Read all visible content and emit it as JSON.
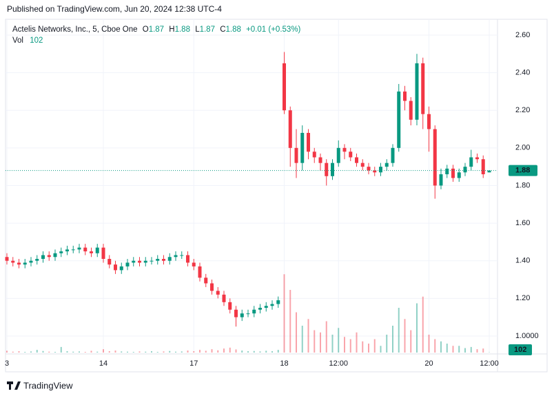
{
  "published": "Published on TradingView.com, Jun 20, 2024 12:38 UTC-4",
  "brand": "TradingView",
  "chart_data": {
    "type": "candlestick",
    "title": "Actelis Networks, Inc., 5, Cboe One",
    "ohlc_labels": [
      "O",
      "H",
      "L",
      "C"
    ],
    "change": "+0.01 (+0.53%)",
    "categories": [
      "3",
      null,
      null,
      null,
      null,
      null,
      null,
      null,
      null,
      null,
      null,
      null,
      null,
      null,
      null,
      null,
      "14",
      null,
      null,
      null,
      null,
      null,
      null,
      null,
      null,
      null,
      null,
      null,
      null,
      null,
      null,
      "17",
      null,
      null,
      null,
      null,
      null,
      null,
      null,
      null,
      null,
      null,
      null,
      null,
      null,
      null,
      "18",
      null,
      null,
      null,
      null,
      null,
      null,
      null,
      null,
      "12:00",
      null,
      null,
      null,
      null,
      null,
      null,
      null,
      null,
      null,
      null,
      null,
      null,
      null,
      null,
      "20",
      null,
      null,
      null,
      null,
      null,
      null,
      null,
      null,
      null,
      "12:00"
    ],
    "open": [
      1.42,
      1.4,
      1.39,
      1.38,
      1.39,
      1.4,
      1.41,
      1.43,
      1.42,
      1.44,
      1.45,
      1.46,
      1.46,
      1.47,
      1.45,
      1.44,
      1.47,
      1.41,
      1.38,
      1.35,
      1.37,
      1.39,
      1.4,
      1.39,
      1.4,
      1.4,
      1.41,
      1.4,
      1.42,
      1.43,
      1.43,
      1.39,
      1.37,
      1.31,
      1.28,
      1.24,
      1.22,
      1.18,
      1.14,
      1.1,
      1.12,
      1.12,
      1.14,
      1.15,
      1.16,
      1.17,
      2.45,
      2.2,
      2.0,
      1.92,
      2.08,
      1.98,
      1.95,
      1.92,
      1.85,
      1.92,
      2.0,
      1.98,
      1.95,
      1.92,
      1.9,
      1.88,
      1.87,
      1.9,
      1.92,
      2.0,
      2.3,
      2.25,
      2.15,
      2.45,
      2.18,
      2.1,
      1.8,
      1.86,
      1.89,
      1.84,
      1.87,
      1.9,
      1.95,
      1.94,
      1.87
    ],
    "high": [
      1.44,
      1.42,
      1.41,
      1.41,
      1.42,
      1.43,
      1.45,
      1.45,
      1.46,
      1.47,
      1.48,
      1.48,
      1.49,
      1.49,
      1.47,
      1.49,
      1.49,
      1.43,
      1.4,
      1.39,
      1.41,
      1.42,
      1.42,
      1.42,
      1.42,
      1.43,
      1.43,
      1.44,
      1.45,
      1.45,
      1.45,
      1.41,
      1.39,
      1.33,
      1.3,
      1.26,
      1.24,
      1.2,
      1.16,
      1.14,
      1.14,
      1.16,
      1.17,
      1.18,
      1.19,
      1.21,
      2.51,
      2.22,
      2.1,
      2.12,
      2.1,
      2.0,
      1.97,
      1.94,
      1.94,
      2.04,
      2.02,
      2.0,
      1.97,
      1.94,
      1.92,
      1.9,
      1.92,
      1.94,
      2.02,
      2.34,
      2.33,
      2.27,
      2.5,
      2.48,
      2.22,
      2.12,
      1.89,
      1.91,
      1.91,
      1.89,
      1.92,
      1.99,
      1.97,
      1.96,
      1.88
    ],
    "low": [
      1.38,
      1.37,
      1.36,
      1.36,
      1.37,
      1.38,
      1.39,
      1.4,
      1.4,
      1.42,
      1.43,
      1.44,
      1.44,
      1.43,
      1.42,
      1.42,
      1.39,
      1.36,
      1.33,
      1.33,
      1.35,
      1.37,
      1.37,
      1.37,
      1.38,
      1.38,
      1.38,
      1.38,
      1.4,
      1.41,
      1.37,
      1.35,
      1.29,
      1.26,
      1.22,
      1.2,
      1.16,
      1.12,
      1.05,
      1.08,
      1.1,
      1.1,
      1.12,
      1.13,
      1.14,
      1.15,
      2.18,
      1.9,
      1.84,
      1.88,
      1.94,
      1.92,
      1.88,
      1.8,
      1.83,
      1.9,
      1.94,
      1.93,
      1.9,
      1.88,
      1.86,
      1.85,
      1.85,
      1.88,
      1.9,
      1.98,
      2.2,
      2.12,
      2.12,
      2.1,
      1.98,
      1.73,
      1.78,
      1.84,
      1.82,
      1.82,
      1.85,
      1.88,
      1.92,
      1.84,
      1.87
    ],
    "close": [
      1.4,
      1.39,
      1.38,
      1.39,
      1.4,
      1.41,
      1.43,
      1.42,
      1.44,
      1.45,
      1.46,
      1.46,
      1.47,
      1.45,
      1.44,
      1.47,
      1.41,
      1.38,
      1.35,
      1.37,
      1.39,
      1.4,
      1.39,
      1.4,
      1.4,
      1.41,
      1.4,
      1.42,
      1.43,
      1.43,
      1.39,
      1.37,
      1.31,
      1.28,
      1.24,
      1.22,
      1.18,
      1.14,
      1.1,
      1.12,
      1.12,
      1.14,
      1.15,
      1.16,
      1.17,
      1.19,
      2.2,
      2.0,
      1.92,
      2.08,
      1.98,
      1.95,
      1.92,
      1.85,
      1.92,
      2.0,
      1.98,
      1.95,
      1.92,
      1.9,
      1.88,
      1.87,
      1.9,
      1.92,
      2.0,
      2.3,
      2.25,
      2.15,
      2.45,
      2.18,
      2.1,
      1.8,
      1.86,
      1.89,
      1.84,
      1.87,
      1.9,
      1.95,
      1.94,
      1.86,
      1.88
    ],
    "volume": {
      "name": "Vol",
      "values": [
        800,
        400,
        600,
        300,
        500,
        1200,
        700,
        400,
        300,
        2500,
        600,
        400,
        500,
        300,
        800,
        400,
        1500,
        600,
        900,
        500,
        400,
        300,
        500,
        400,
        600,
        300,
        500,
        700,
        400,
        500,
        900,
        600,
        1200,
        800,
        1500,
        1000,
        1800,
        2200,
        1400,
        900,
        600,
        700,
        500,
        800,
        600,
        1200,
        35000,
        28000,
        18000,
        12000,
        15000,
        10000,
        9000,
        14000,
        8000,
        11000,
        7000,
        6000,
        9000,
        5000,
        4000,
        6000,
        3000,
        8000,
        12000,
        20000,
        15000,
        10000,
        22000,
        25000,
        8000,
        6000,
        5000,
        4000,
        3000,
        3000,
        2000,
        2500,
        1500,
        1800,
        102
      ]
    },
    "volume_ylim": [
      0,
      40000
    ],
    "ylim": [
      0.912,
      2.684
    ],
    "yticks": [
      {
        "value": 1,
        "label": "1.0000"
      },
      {
        "value": 1.2,
        "label": "1.20"
      },
      {
        "value": 1.4,
        "label": "1.40"
      },
      {
        "value": 1.6,
        "label": "1.60"
      },
      {
        "value": 1.8,
        "label": "1.80"
      },
      {
        "value": 2,
        "label": "2.00"
      },
      {
        "value": 2.2,
        "label": "2.20"
      },
      {
        "value": 2.4,
        "label": "2.40"
      },
      {
        "value": 2.6,
        "label": "2.60"
      }
    ],
    "grid": true,
    "up_color": "#089981",
    "down_color": "#f23645"
  }
}
